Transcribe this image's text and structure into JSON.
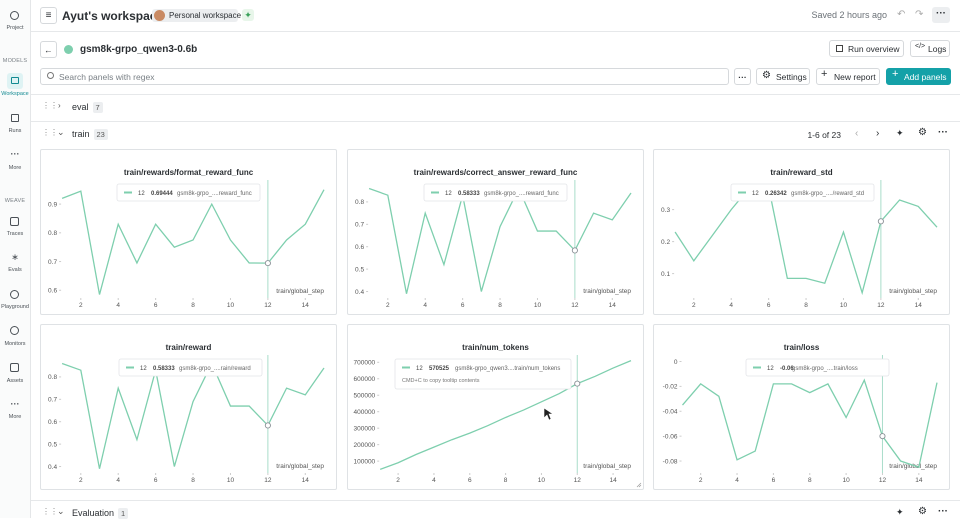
{
  "sidebar": {
    "project": "Project",
    "models": "MODELS",
    "workspace": "Workspace",
    "runs": "Runs",
    "more": "More",
    "weave": "WEAVE",
    "traces": "Traces",
    "evals": "Evals",
    "playground": "Playground",
    "monitors": "Monitors",
    "assets": "Assets",
    "more_weave": "More"
  },
  "header": {
    "title": "Ayut's workspace",
    "badge": "Personal workspace",
    "status": "Saved 2 hours ago"
  },
  "run": {
    "name": "gsm8k-grpo_qwen3-0.6b",
    "overview": "Run overview",
    "logs": "Logs"
  },
  "toolbar": {
    "search": "Search panels with regex",
    "settings": "Settings",
    "new_report": "New report",
    "add_panels": "Add panels"
  },
  "sections": [
    {
      "name": "eval",
      "count": 7
    },
    {
      "name": "train",
      "count": 23,
      "pagination": "1-6 of 23"
    },
    {
      "name": "Evaluation",
      "count": 1
    }
  ],
  "chart_data": [
    {
      "type": "line",
      "title": "train/rewards/format_reward_func",
      "x": [
        1,
        2,
        3,
        4,
        5,
        6,
        7,
        8,
        9,
        10,
        11,
        12,
        13,
        14,
        15
      ],
      "xlim": [
        1,
        15
      ],
      "xticks": [
        2,
        4,
        6,
        8,
        10,
        12,
        14
      ],
      "xlabel": "train/global_step",
      "ylim": [
        0.58,
        0.97
      ],
      "yticks": [
        0.6,
        0.7,
        0.8,
        0.9
      ],
      "series": [
        {
          "name": "gsm8k-grpo_....reward_func",
          "color": "#7ecfae",
          "values": [
            0.92,
            0.945,
            0.585,
            0.83,
            0.695,
            0.83,
            0.75,
            0.775,
            0.9,
            0.775,
            0.695,
            0.69444,
            0.775,
            0.83,
            0.95
          ]
        }
      ]
    },
    {
      "type": "line",
      "title": "train/rewards/correct_answer_reward_func",
      "x": [
        1,
        2,
        3,
        4,
        5,
        6,
        7,
        8,
        9,
        10,
        11,
        12,
        13,
        14,
        15
      ],
      "xlim": [
        1,
        15
      ],
      "xticks": [
        2,
        4,
        6,
        8,
        10,
        12,
        14
      ],
      "xlabel": "train/global_step",
      "ylim": [
        0.38,
        0.88
      ],
      "yticks": [
        0.4,
        0.5,
        0.6,
        0.7,
        0.8
      ],
      "series": [
        {
          "name": "gsm8k-grpo_....reward_func",
          "color": "#7ecfae",
          "values": [
            0.86,
            0.83,
            0.39,
            0.75,
            0.52,
            0.83,
            0.4,
            0.69,
            0.86,
            0.67,
            0.67,
            0.58333,
            0.75,
            0.72,
            0.84
          ]
        }
      ]
    },
    {
      "type": "line",
      "title": "train/reward_std",
      "x": [
        1,
        2,
        3,
        4,
        5,
        6,
        7,
        8,
        9,
        10,
        11,
        12,
        13,
        14,
        15
      ],
      "xlim": [
        1,
        15
      ],
      "xticks": [
        2,
        4,
        6,
        8,
        10,
        12,
        14
      ],
      "xlabel": "train/global_step",
      "ylim": [
        0.03,
        0.38
      ],
      "yticks": [
        0.1,
        0.2,
        0.3
      ],
      "series": [
        {
          "name": "gsm8k-grpo_..../reward_std",
          "color": "#7ecfae",
          "values": [
            0.23,
            0.14,
            0.22,
            0.3,
            0.37,
            0.37,
            0.085,
            0.085,
            0.07,
            0.23,
            0.04,
            0.26342,
            0.33,
            0.31,
            0.245
          ]
        }
      ]
    },
    {
      "type": "line",
      "title": "train/reward",
      "x": [
        1,
        2,
        3,
        4,
        5,
        6,
        7,
        8,
        9,
        10,
        11,
        12,
        13,
        14,
        15
      ],
      "xlim": [
        1,
        15
      ],
      "xticks": [
        2,
        4,
        6,
        8,
        10,
        12,
        14
      ],
      "xlabel": "train/global_step",
      "ylim": [
        0.38,
        0.88
      ],
      "yticks": [
        0.4,
        0.5,
        0.6,
        0.7,
        0.8
      ],
      "series": [
        {
          "name": "gsm8k-grpo_....rain/reward",
          "color": "#7ecfae",
          "values": [
            0.86,
            0.83,
            0.39,
            0.75,
            0.52,
            0.83,
            0.4,
            0.69,
            0.86,
            0.67,
            0.67,
            0.58333,
            0.75,
            0.72,
            0.84
          ]
        }
      ]
    },
    {
      "type": "line",
      "title": "train/num_tokens",
      "x": [
        1,
        2,
        3,
        4,
        5,
        6,
        7,
        8,
        9,
        10,
        11,
        12,
        13,
        14,
        15
      ],
      "xlim": [
        1,
        15
      ],
      "xticks": [
        2,
        4,
        6,
        8,
        10,
        12,
        14
      ],
      "xlabel": "train/global_step",
      "ylim": [
        40000,
        720000
      ],
      "yticks": [
        100000,
        200000,
        300000,
        400000,
        500000,
        600000,
        700000
      ],
      "series": [
        {
          "name": "gsm8k-grpo_qwen3....train/num_tokens",
          "color": "#7ecfae",
          "values": [
            50000,
            90000,
            140000,
            185000,
            230000,
            270000,
            315000,
            365000,
            410000,
            460000,
            510000,
            570525,
            615000,
            665000,
            710000
          ]
        }
      ],
      "tooltip_hint": "CMD+C to copy tooltip contents"
    },
    {
      "type": "line",
      "title": "train/loss",
      "x": [
        1,
        2,
        3,
        4,
        5,
        6,
        7,
        8,
        9,
        10,
        11,
        12,
        13,
        14,
        15
      ],
      "xlim": [
        1,
        15
      ],
      "xticks": [
        2,
        4,
        6,
        8,
        10,
        12,
        14
      ],
      "xlabel": "train/global_step",
      "ylim": [
        -0.088,
        0.002
      ],
      "yticks": [
        0,
        -0.02,
        -0.04,
        -0.06,
        -0.08
      ],
      "series": [
        {
          "name": "gsm8k-grpo_....train/loss",
          "color": "#7ecfae",
          "values": [
            -0.035,
            -0.018,
            -0.028,
            -0.079,
            -0.072,
            -0.018,
            -0.018,
            -0.025,
            -0.018,
            -0.045,
            -0.015,
            -0.06,
            -0.08,
            -0.085,
            -0.017
          ]
        }
      ]
    }
  ]
}
